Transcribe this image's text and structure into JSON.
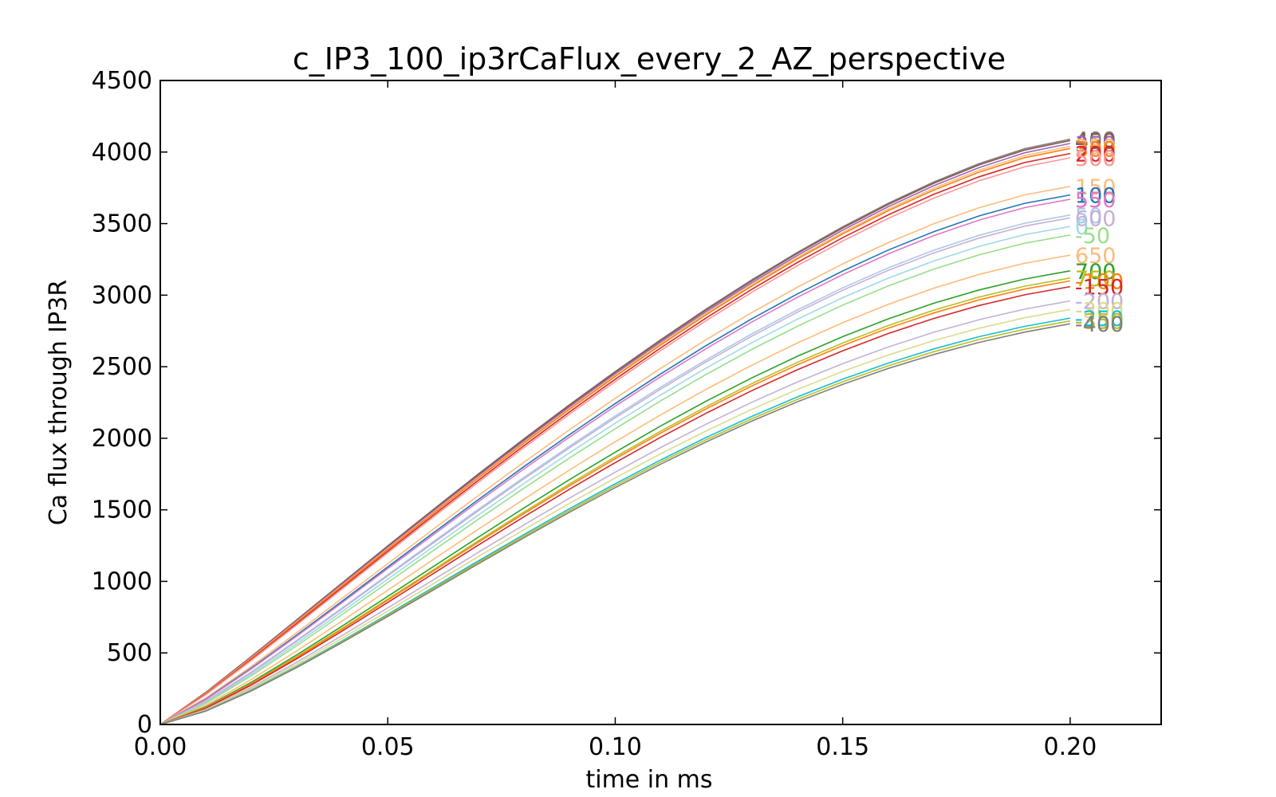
{
  "chart_data": {
    "type": "line",
    "title": "c_IP3_100_ip3rCaFlux_every_2_AZ_perspective",
    "xlabel": "time in ms",
    "ylabel": "Ca flux through IP3R",
    "xlim": [
      0,
      0.22
    ],
    "ylim": [
      0,
      4500
    ],
    "xticks": [
      "0.00",
      "0.05",
      "0.10",
      "0.15",
      "0.20"
    ],
    "yticks": [
      "0",
      "500",
      "1000",
      "1500",
      "2000",
      "2500",
      "3000",
      "3500",
      "4000",
      "4500"
    ],
    "grid": false,
    "x": [
      0,
      0.01,
      0.02,
      0.03,
      0.04,
      0.05,
      0.06,
      0.07,
      0.08,
      0.09,
      0.1,
      0.11,
      0.12,
      0.13,
      0.14,
      0.15,
      0.16,
      0.17,
      0.18,
      0.19,
      0.2
    ],
    "series": [
      {
        "name": "400",
        "color": "#7f7f7f",
        "final": 4090
      },
      {
        "name": "450",
        "color": "#8c564b",
        "final": 4080
      },
      {
        "name": "350",
        "color": "#9467bd",
        "final": 4060
      },
      {
        "name": "250",
        "color": "#ffbb78",
        "final": 4040
      },
      {
        "name": "300",
        "color": "#ff7f0e",
        "final": 4025
      },
      {
        "name": "200",
        "color": "#d62728",
        "final": 3990
      },
      {
        "name": "500",
        "color": "#ff9896",
        "final": 3960
      },
      {
        "name": "150",
        "color": "#ffbb78",
        "final": 3760
      },
      {
        "name": "100",
        "color": "#1f77b4",
        "final": 3700
      },
      {
        "name": "550",
        "color": "#e377c2",
        "final": 3670
      },
      {
        "name": "50",
        "color": "#aec7e8",
        "final": 3560
      },
      {
        "name": "600",
        "color": "#c5b0d5",
        "final": 3540
      },
      {
        "name": "0",
        "color": "#9edae5",
        "final": 3480
      },
      {
        "name": "-50",
        "color": "#98df8a",
        "final": 3420
      },
      {
        "name": "650",
        "color": "#ffbb78",
        "final": 3280
      },
      {
        "name": "700",
        "color": "#2ca02c",
        "final": 3170
      },
      {
        "name": "750",
        "color": "#bcbd22",
        "final": 3120
      },
      {
        "name": "-100",
        "color": "#ff7f0e",
        "final": 3100
      },
      {
        "name": "-150",
        "color": "#d62728",
        "final": 3060
      },
      {
        "name": "-200",
        "color": "#c5b0d5",
        "final": 2960
      },
      {
        "name": "-300",
        "color": "#dbdb8d",
        "final": 2900
      },
      {
        "name": "-250",
        "color": "#17becf",
        "final": 2840
      },
      {
        "name": "-350",
        "color": "#bcbd22",
        "final": 2820
      },
      {
        "name": "-400",
        "color": "#7f7f7f",
        "final": 2800
      }
    ]
  }
}
